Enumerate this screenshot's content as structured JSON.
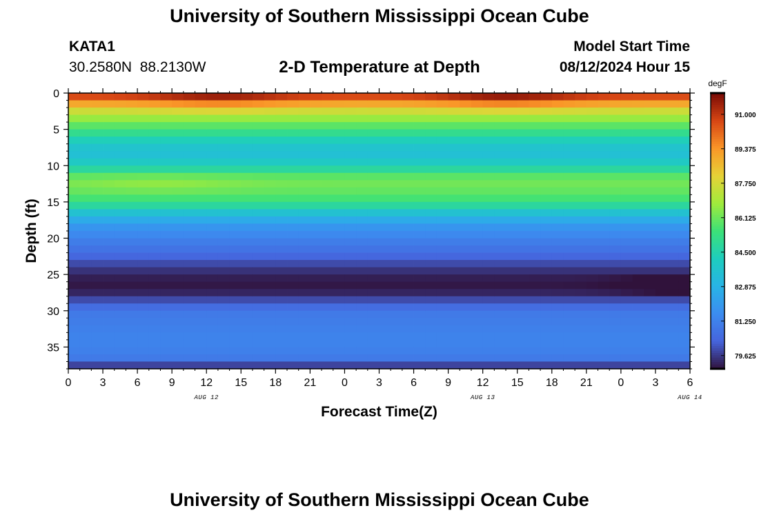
{
  "header": {
    "title": "University of Southern Mississippi Ocean Cube",
    "station_id": "KATA1",
    "coordinates": "30.2580N  88.2130W",
    "plot_title": "2-D Temperature at Depth",
    "model_start_label": "Model Start Time",
    "model_start_value": "08/12/2024 Hour 15"
  },
  "footer": {
    "title": "University of Southern Mississippi Ocean Cube"
  },
  "chart_data": {
    "type": "heatmap",
    "title": "2-D Temperature at Depth",
    "xlabel": "Forecast Time(Z)",
    "ylabel": "Depth (ft)",
    "x_ticks": [
      "0",
      "3",
      "6",
      "9",
      "12",
      "15",
      "18",
      "21",
      "0",
      "3",
      "6",
      "9",
      "12",
      "15",
      "18",
      "21",
      "0",
      "3",
      "6"
    ],
    "date_labels": [
      {
        "label": "AUG 12",
        "hour": 12
      },
      {
        "label": "AUG 13",
        "hour": 36
      },
      {
        "label": "AUG 14",
        "hour": 54
      }
    ],
    "x_range_hours": [
      0,
      54
    ],
    "y_ticks": [
      0,
      5,
      10,
      15,
      20,
      25,
      30,
      35
    ],
    "ylim": [
      0,
      38
    ],
    "y_inverted": true,
    "colorbar": {
      "units": "degF",
      "range": [
        79.0,
        92.0
      ],
      "ticks": [
        "91.000",
        "89.375",
        "87.750",
        "86.125",
        "84.500",
        "82.875",
        "81.250",
        "79.625"
      ]
    },
    "depth_levels_ft": [
      0,
      1,
      2,
      3,
      4,
      5,
      6,
      7,
      8,
      9,
      10,
      11,
      12,
      13,
      14,
      15,
      16,
      17,
      18,
      19,
      20,
      21,
      22,
      23,
      24,
      25,
      26,
      27,
      28,
      29,
      30,
      31,
      32,
      33,
      34,
      35,
      36,
      37
    ],
    "base_profile_degF": [
      90.6,
      89.0,
      87.6,
      86.7,
      85.9,
      85.1,
      84.3,
      83.7,
      83.5,
      84.0,
      84.8,
      85.9,
      86.2,
      86.0,
      85.6,
      84.8,
      83.6,
      82.6,
      81.9,
      81.5,
      81.1,
      80.8,
      80.4,
      79.9,
      79.5,
      79.2,
      79.1,
      79.3,
      79.9,
      80.6,
      81.0,
      81.1,
      81.2,
      81.3,
      81.3,
      81.2,
      81.0,
      79.8
    ],
    "surface_peaks": [
      {
        "hour": 13,
        "peak_degF": 91.5
      },
      {
        "hour": 38,
        "peak_degF": 91.6
      }
    ],
    "subsurface_maximum": {
      "hour": 8,
      "depth_ft": 12,
      "degF": 86.6
    },
    "cold_core": {
      "depth_ft": 26,
      "coldest_hour": 54,
      "degF": 78.8
    }
  }
}
